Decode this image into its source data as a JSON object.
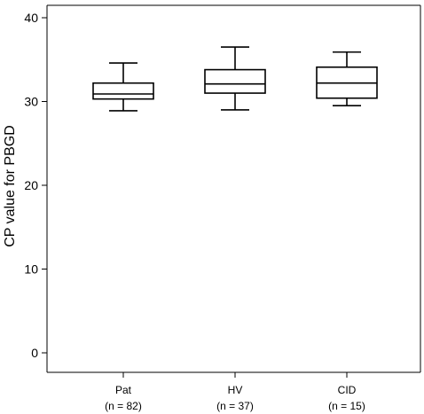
{
  "chart_data": {
    "type": "boxplot",
    "ylabel": "CP value for PBGD",
    "xlabel": "",
    "ylim": [
      0,
      40
    ],
    "yticks": [
      "0",
      "10",
      "20",
      "30",
      "40"
    ],
    "grid": false,
    "categories": [
      {
        "name": "Pat",
        "n_label": "(n = 82)"
      },
      {
        "name": "HV",
        "n_label": "(n = 37)"
      },
      {
        "name": "CID",
        "n_label": "(n = 15)"
      }
    ],
    "boxes": [
      {
        "whisker_low": 28.9,
        "q1": 30.3,
        "median": 30.9,
        "q3": 32.2,
        "whisker_high": 34.6
      },
      {
        "whisker_low": 29.0,
        "q1": 31.0,
        "median": 32.1,
        "q3": 33.8,
        "whisker_high": 36.5
      },
      {
        "whisker_low": 29.5,
        "q1": 30.4,
        "median": 32.2,
        "q3": 34.1,
        "whisker_high": 35.9
      }
    ]
  }
}
